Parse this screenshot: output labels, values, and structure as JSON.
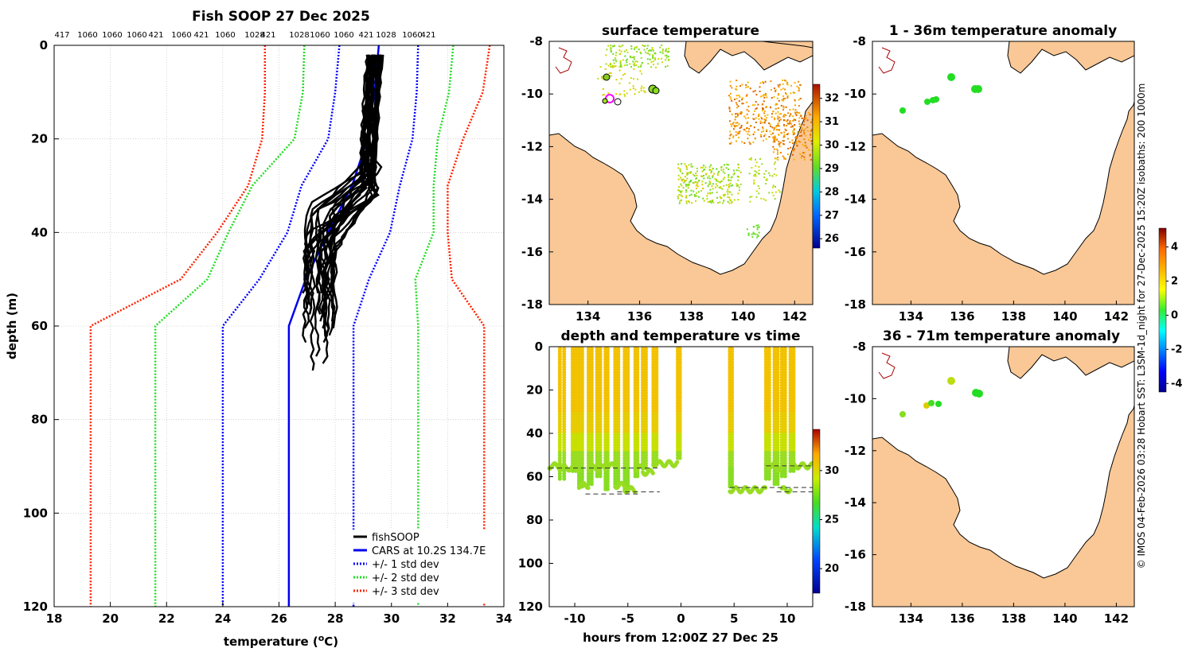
{
  "chart_data": [
    {
      "type": "line",
      "title": "Fish SOOP 27 Dec 2025",
      "xlabel": "temperature (",
      "xlabel_sup": "o",
      "xlabel_end": "C)",
      "ylabel": "depth (m)",
      "xlim": [
        18,
        34
      ],
      "ylim": [
        0,
        120
      ],
      "xticks": [
        "18",
        "20",
        "22",
        "24",
        "26",
        "28",
        "30",
        "32",
        "34"
      ],
      "yticks": [
        "0",
        "20",
        "40",
        "60",
        "80",
        "100",
        "120"
      ],
      "top_labels": [
        "417",
        "1060",
        "1060",
        "1060",
        "421",
        "1060",
        "421",
        "1060",
        "1028",
        "421",
        "1028",
        "1060",
        "1060",
        "421",
        "1028",
        "1060",
        "421"
      ],
      "legend": [
        "fishSOOP",
        "CARS at 10.2S 134.7E",
        "+/- 1 std dev",
        "+/- 2 std dev",
        "+/- 3 std dev"
      ],
      "series": [
        {
          "name": "CARS at 10.2S 134.7E",
          "depth": [
            0,
            10,
            20,
            30,
            40,
            50,
            60,
            120
          ],
          "temp": [
            29.55,
            29.4,
            29.15,
            28.6,
            27.75,
            26.95,
            26.35,
            26.35
          ]
        },
        {
          "name": "+1 std dev",
          "depth": [
            0,
            10,
            20,
            30,
            40,
            50,
            60,
            120
          ],
          "temp": [
            30.95,
            30.9,
            30.75,
            30.3,
            29.95,
            29.2,
            28.65,
            28.65
          ]
        },
        {
          "name": "-1 std dev",
          "depth": [
            0,
            10,
            20,
            30,
            40,
            50,
            60,
            120
          ],
          "temp": [
            28.15,
            28.0,
            27.75,
            26.8,
            26.3,
            25.3,
            24.0,
            24.0
          ]
        },
        {
          "name": "+2 std dev",
          "depth": [
            0,
            10,
            20,
            30,
            40,
            50,
            60,
            120
          ],
          "temp": [
            32.2,
            32.05,
            31.65,
            31.5,
            31.5,
            30.85,
            30.95,
            30.95
          ]
        },
        {
          "name": "-2 std dev",
          "depth": [
            0,
            10,
            20,
            30,
            40,
            50,
            60,
            120
          ],
          "temp": [
            26.9,
            26.85,
            26.55,
            25.05,
            24.2,
            23.45,
            21.6,
            21.6
          ]
        },
        {
          "name": "+3 std dev",
          "depth": [
            0,
            10,
            20,
            30,
            40,
            50,
            60,
            120
          ],
          "temp": [
            33.5,
            33.25,
            32.55,
            32.0,
            32.0,
            32.15,
            33.3,
            33.3
          ]
        },
        {
          "name": "-3 std dev",
          "depth": [
            0,
            10,
            20,
            30,
            40,
            50,
            60,
            120
          ],
          "temp": [
            25.5,
            25.5,
            25.4,
            24.9,
            23.8,
            22.5,
            19.3,
            19.3
          ]
        }
      ]
    },
    {
      "type": "scatter",
      "title": "surface temperature",
      "xticks": [
        "134",
        "136",
        "138",
        "140",
        "142"
      ],
      "yticks": [
        "-8",
        "-10",
        "-12",
        "-14",
        "-16",
        "-18"
      ],
      "colorbar_ticks": [
        "26",
        "27",
        "28",
        "29",
        "30",
        "31",
        "32"
      ]
    },
    {
      "type": "scatter",
      "title": "1 - 36m temperature anomaly",
      "xticks": [
        "134",
        "136",
        "138",
        "140",
        "142"
      ],
      "yticks": [
        "-8",
        "-10",
        "-12",
        "-14",
        "-16",
        "-18"
      ],
      "colorbar_ticks": [
        "-4",
        "-2",
        "0",
        "2",
        "4"
      ]
    },
    {
      "type": "scatter",
      "title": "depth and temperature vs time",
      "xlabel": "hours from 12:00Z 27 Dec 25",
      "xticks": [
        "-10",
        "-5",
        "0",
        "5",
        "10"
      ],
      "yticks": [
        "0",
        "20",
        "40",
        "60",
        "80",
        "100",
        "120"
      ],
      "colorbar_ticks": [
        "20",
        "25",
        "30"
      ]
    },
    {
      "type": "scatter",
      "title": "36 - 71m temperature anomaly",
      "xticks": [
        "134",
        "136",
        "138",
        "140",
        "142"
      ],
      "yticks": [
        "-8",
        "-10",
        "-12",
        "-14",
        "-16",
        "-18"
      ]
    }
  ],
  "side_text": "© IMOS 04-Feb-2026 03:28 Hobart SST: L3SM-1d_night for 27-Dec-2025 15:20Z isobaths: 200  1000m",
  "colors": {
    "land": "#f9c896",
    "cars": "#0000ee",
    "std1": "#0000ff",
    "std2": "#22dd22",
    "std3": "#ff2200",
    "fish": "#000000"
  }
}
